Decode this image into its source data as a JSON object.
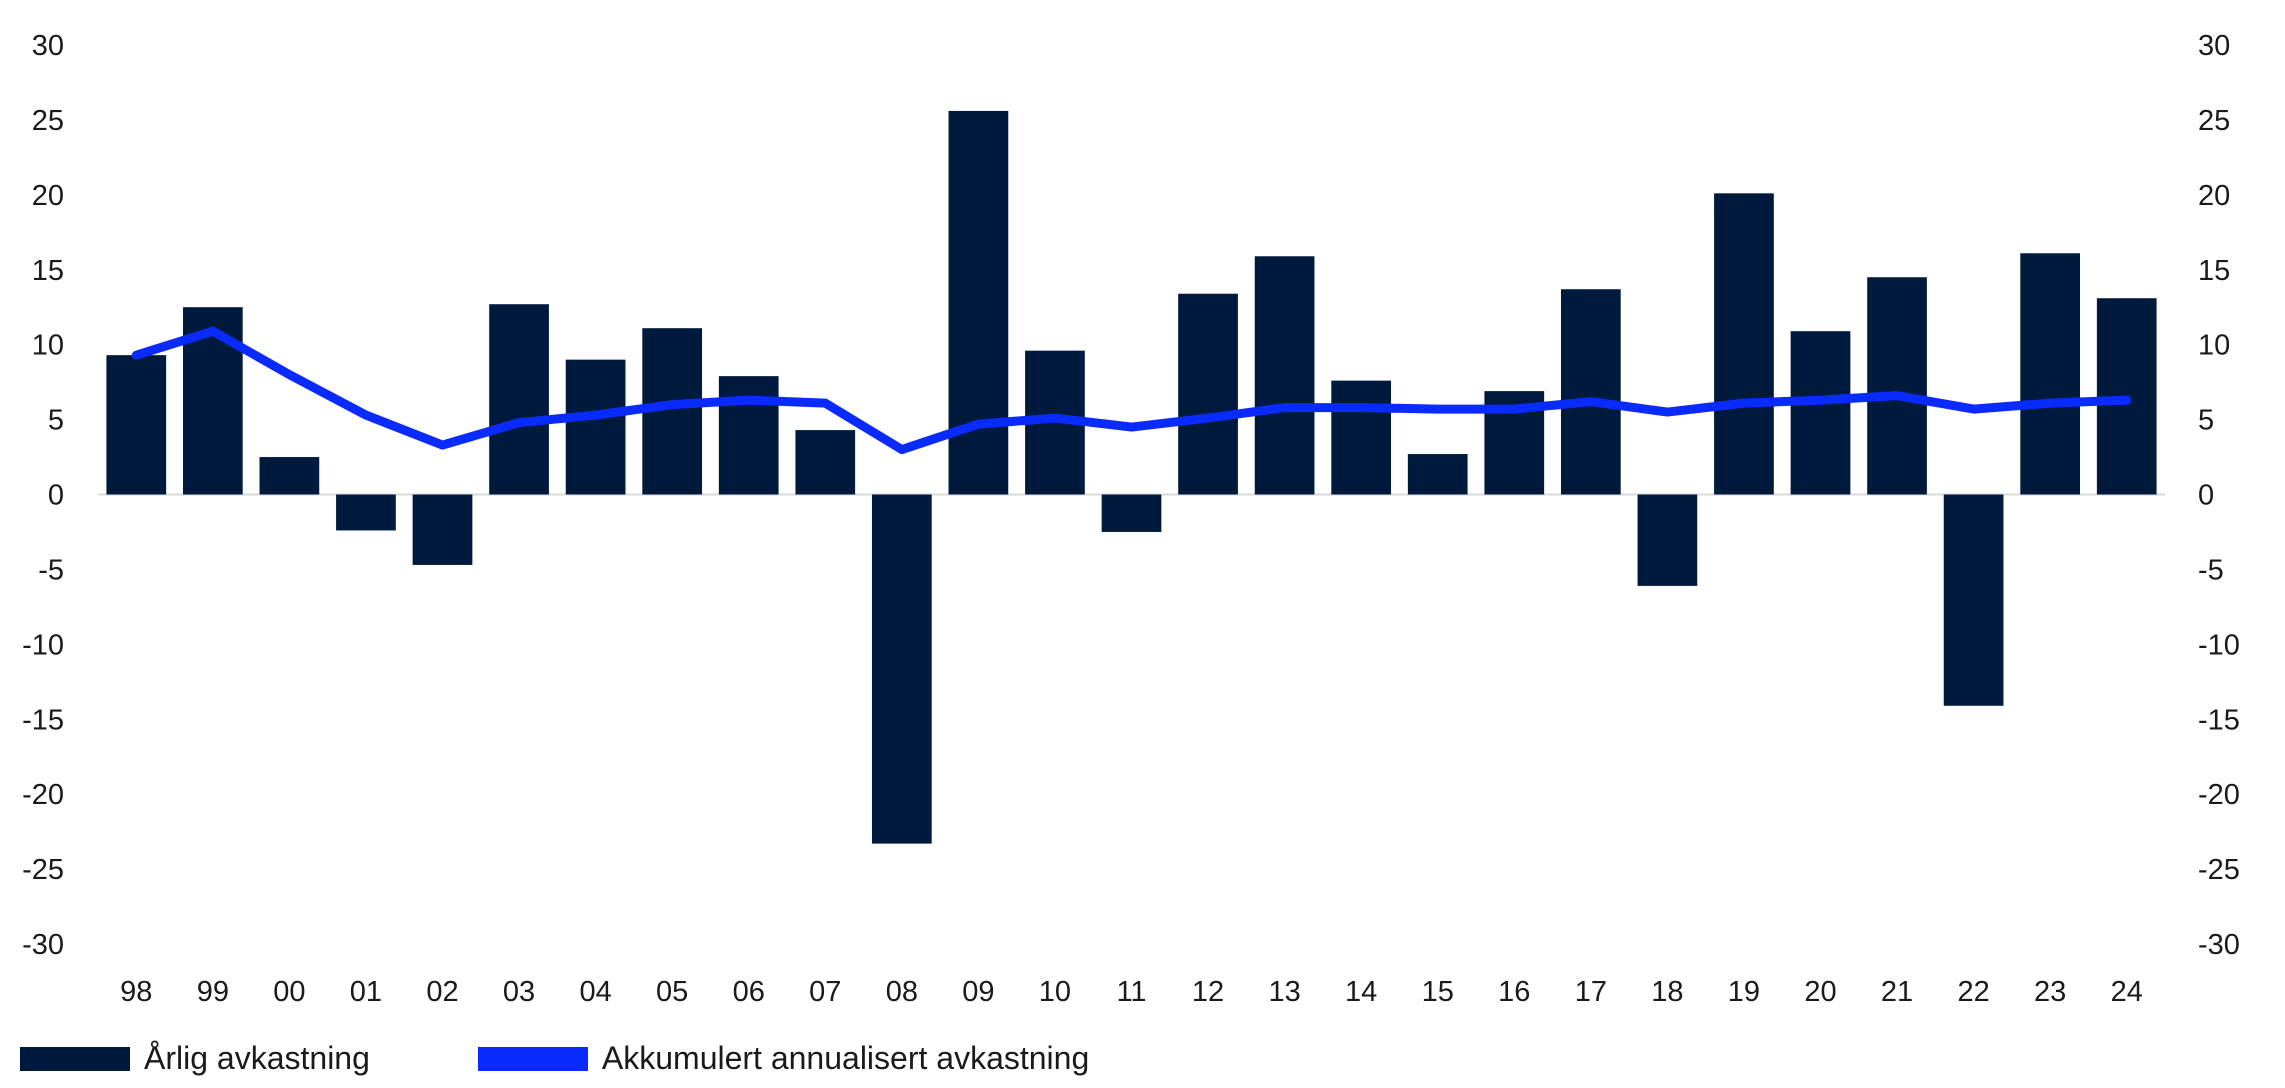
{
  "chart_data": {
    "type": "bar+line",
    "categories": [
      "98",
      "99",
      "00",
      "01",
      "02",
      "03",
      "04",
      "05",
      "06",
      "07",
      "08",
      "09",
      "10",
      "11",
      "12",
      "13",
      "14",
      "15",
      "16",
      "17",
      "18",
      "19",
      "20",
      "21",
      "22",
      "23",
      "24"
    ],
    "series": [
      {
        "name": "Årlig avkastning",
        "type": "bar",
        "color": "#001a3d",
        "values": [
          9.3,
          12.5,
          2.5,
          -2.4,
          -4.7,
          12.7,
          9.0,
          11.1,
          7.9,
          4.3,
          -23.3,
          25.6,
          9.6,
          -2.5,
          13.4,
          15.9,
          7.6,
          2.7,
          6.9,
          13.7,
          -6.1,
          20.1,
          10.9,
          14.5,
          -14.1,
          16.1,
          13.1
        ]
      },
      {
        "name": "Akkumulert annualisert avkastning",
        "type": "line",
        "color": "#0a2bff",
        "values": [
          9.3,
          10.9,
          8.0,
          5.3,
          3.3,
          4.8,
          5.3,
          6.0,
          6.3,
          6.1,
          3.0,
          4.7,
          5.1,
          4.5,
          5.1,
          5.8,
          5.8,
          5.7,
          5.7,
          6.2,
          5.5,
          6.1,
          6.3,
          6.6,
          5.7,
          6.1,
          6.3
        ]
      }
    ],
    "ylim": [
      -30,
      30
    ],
    "yticks": [
      "30",
      "25",
      "20",
      "15",
      "10",
      "5",
      "0",
      "-5",
      "-10",
      "-15",
      "-20",
      "-25",
      "-30"
    ],
    "title": "",
    "xlabel": "",
    "ylabel": "",
    "legend_position": "bottom-left"
  },
  "legend": {
    "items": [
      {
        "label": "Årlig avkastning",
        "color": "#001a3d"
      },
      {
        "label": "Akkumulert annualisert avkastning",
        "color": "#0a2bff"
      }
    ]
  }
}
